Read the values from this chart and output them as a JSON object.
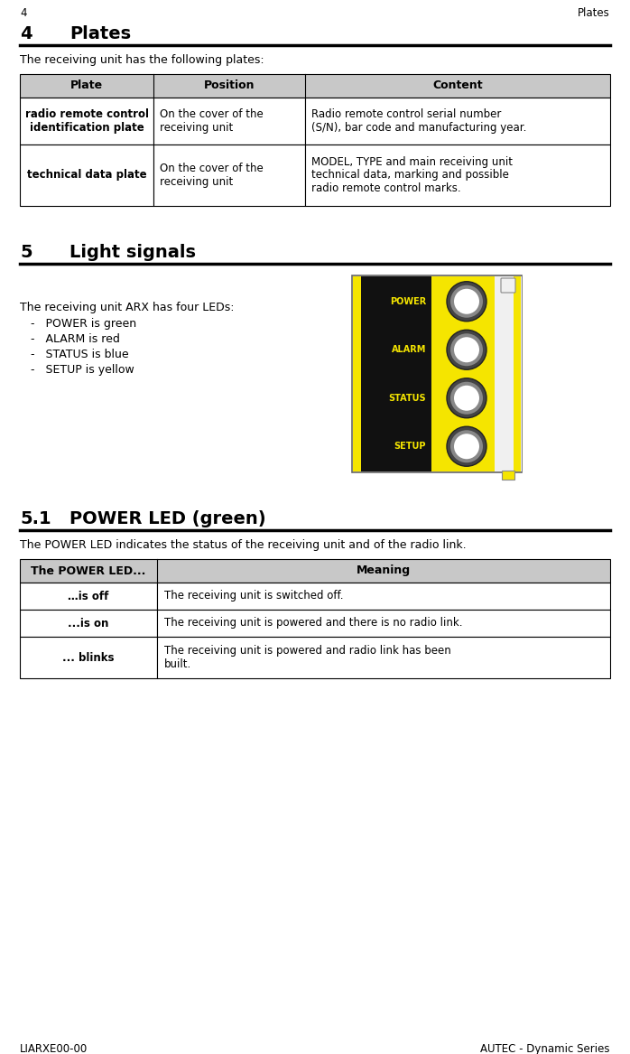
{
  "page_number": "4",
  "page_header_right": "Plates",
  "section4_title": "4",
  "section4_title2": "Plates",
  "section4_intro": "The receiving unit has the following plates:",
  "table1_headers": [
    "Plate",
    "Position",
    "Content"
  ],
  "table1_row1_col1": "radio remote control\nidentification plate",
  "table1_row1_col2": "On the cover of the\nreceiving unit",
  "table1_row1_col3": "Radio remote control serial number\n(S/N), bar code and manufacturing year.",
  "table1_row2_col1": "technical data plate",
  "table1_row2_col2": "On the cover of the\nreceiving unit",
  "table1_row2_col3": "MODEL, TYPE and main receiving unit\ntechnical data, marking and possible\nradio remote control marks.",
  "section5_title": "5",
  "section5_title2": "Light signals",
  "section5_intro": "The receiving unit ARX has four LEDs:",
  "section5_bullets": [
    "-   POWER is green",
    "-   ALARM is red",
    "-   STATUS is blue",
    "-   SETUP is yellow"
  ],
  "led_labels": [
    "POWER",
    "ALARM",
    "STATUS",
    "SETUP"
  ],
  "section51_title": "5.1",
  "section51_title2": "POWER LED (green)",
  "section51_intro": "The POWER LED indicates the status of the receiving unit and of the radio link.",
  "table2_headers": [
    "The POWER LED...",
    "Meaning"
  ],
  "table2_row1_col1": "…is off",
  "table2_row1_col2": "The receiving unit is switched off.",
  "table2_row2_col1": "...is on",
  "table2_row2_col2": "The receiving unit is powered and there is no radio link.",
  "table2_row3_col1": "... blinks",
  "table2_row3_col2": "The receiving unit is powered and radio link has been\nbuilt.",
  "footer_left": "LIARXE00-00",
  "footer_right": "AUTEC - Dynamic Series",
  "bg_color": "#ffffff",
  "yellow_device": "#f5e500",
  "black_panel": "#111111",
  "table_hdr_gray": "#c8c8c8"
}
